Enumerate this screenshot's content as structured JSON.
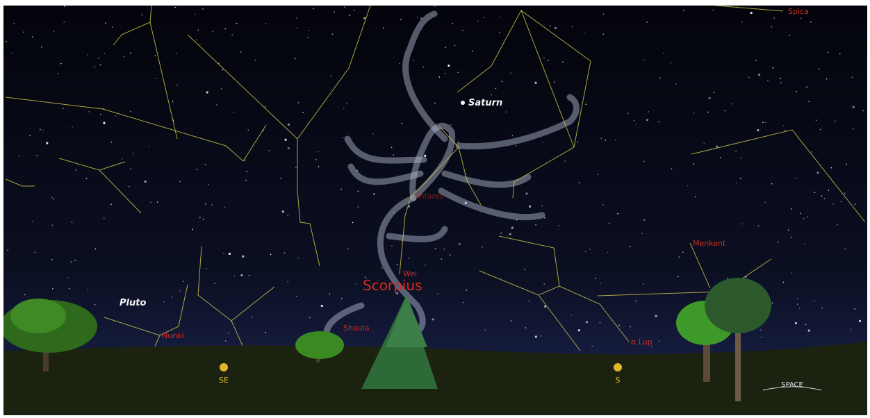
{
  "planets": [
    "Saturn",
    "Pluto"
  ],
  "stars": [
    "Spica",
    "Antares",
    "Wei",
    "Menkent",
    "Shaula",
    "Nunki",
    "α Lup"
  ],
  "constellation": "Scorpius",
  "compass": [
    "SE",
    "S"
  ],
  "mode_button": "SPACE"
}
